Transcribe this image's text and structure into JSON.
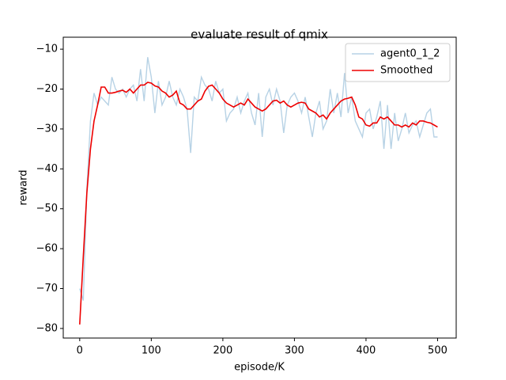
{
  "chart_data": {
    "type": "line",
    "title": "evaluate result of qmix",
    "xlabel": "episode/K",
    "ylabel": "reward",
    "x": [
      0,
      5,
      10,
      15,
      20,
      25,
      30,
      35,
      40,
      45,
      50,
      55,
      60,
      65,
      70,
      75,
      80,
      85,
      90,
      95,
      100,
      105,
      110,
      115,
      120,
      125,
      130,
      135,
      140,
      145,
      150,
      155,
      160,
      165,
      170,
      175,
      180,
      185,
      190,
      195,
      200,
      205,
      210,
      215,
      220,
      225,
      230,
      235,
      240,
      245,
      250,
      255,
      260,
      265,
      270,
      275,
      280,
      285,
      290,
      295,
      300,
      305,
      310,
      315,
      320,
      325,
      330,
      335,
      340,
      345,
      350,
      355,
      360,
      365,
      370,
      375,
      380,
      385,
      390,
      395,
      400,
      405,
      410,
      415,
      420,
      425,
      430,
      435,
      440,
      445,
      450,
      455,
      460,
      465,
      470,
      475,
      480,
      485,
      490,
      495,
      500
    ],
    "series": [
      {
        "name": "agent0_1_2",
        "color": "#b7d2e5",
        "values": [
          -70,
          -73,
          -45,
          -28,
          -21,
          -24,
          -22,
          -23,
          -24,
          -17,
          -20,
          -21,
          -20,
          -22,
          -20,
          -19,
          -23,
          -15,
          -23,
          -12,
          -17,
          -26,
          -18,
          -24,
          -22,
          -18,
          -22,
          -24,
          -20,
          -22,
          -25,
          -36,
          -22,
          -23,
          -17,
          -19,
          -20,
          -23,
          -18,
          -21,
          -20,
          -28,
          -26,
          -25,
          -22,
          -26,
          -23,
          -21,
          -26,
          -29,
          -21,
          -32,
          -22,
          -20,
          -24,
          -20,
          -23,
          -31,
          -24,
          -22,
          -21,
          -23,
          -26,
          -22,
          -27,
          -32,
          -26,
          -23,
          -30,
          -28,
          -20,
          -26,
          -21,
          -27,
          -16,
          -26,
          -22,
          -28,
          -30,
          -32,
          -26,
          -25,
          -30,
          -27,
          -23,
          -35,
          -24,
          -35,
          -26,
          -33,
          -30,
          -26,
          -31,
          -29,
          -28,
          -32,
          -29,
          -26,
          -25,
          -32,
          -32
        ]
      },
      {
        "name": "Smoothed",
        "color": "#ee0000",
        "values": [
          -79,
          -62,
          -46,
          -35,
          -28,
          -24,
          -19.5,
          -19.5,
          -21,
          -21,
          -20.8,
          -20.5,
          -20.3,
          -20.8,
          -20,
          -21,
          -20,
          -19,
          -19,
          -18.3,
          -18.5,
          -19.2,
          -19.5,
          -20.5,
          -21,
          -22,
          -21.5,
          -20.5,
          -23.5,
          -24,
          -25,
          -25,
          -24,
          -23,
          -22.5,
          -20.5,
          -19.3,
          -19,
          -20,
          -21,
          -22.5,
          -23.5,
          -24,
          -24.5,
          -24,
          -23.5,
          -24,
          -22.5,
          -23.5,
          -24.5,
          -25,
          -25.5,
          -25,
          -24,
          -23,
          -22.8,
          -23.5,
          -23,
          -24,
          -24.5,
          -24,
          -23.5,
          -23.3,
          -23.5,
          -25,
          -25.5,
          -26,
          -27,
          -26.5,
          -27.5,
          -26,
          -25,
          -24,
          -23,
          -22.5,
          -22.3,
          -22,
          -24,
          -27,
          -27.5,
          -29,
          -29.3,
          -28.5,
          -28.5,
          -27,
          -27.5,
          -27,
          -28,
          -29,
          -29,
          -29.5,
          -29,
          -29.5,
          -28.5,
          -29,
          -28,
          -28,
          -28.3,
          -28.5,
          -29,
          -29.5
        ]
      }
    ],
    "xlim": [
      -23,
      526
    ],
    "ylim": [
      -82.4,
      -7.0
    ],
    "xticks": [
      0,
      100,
      200,
      300,
      400,
      500
    ],
    "yticks": [
      {
        "value": -80,
        "label": "−80"
      },
      {
        "value": -70,
        "label": "−70"
      },
      {
        "value": -60,
        "label": "−60"
      },
      {
        "value": -50,
        "label": "−50"
      },
      {
        "value": -40,
        "label": "−40"
      },
      {
        "value": -30,
        "label": "−30"
      },
      {
        "value": -20,
        "label": "−20"
      },
      {
        "value": -10,
        "label": "−10"
      }
    ],
    "legend": "upper right"
  }
}
